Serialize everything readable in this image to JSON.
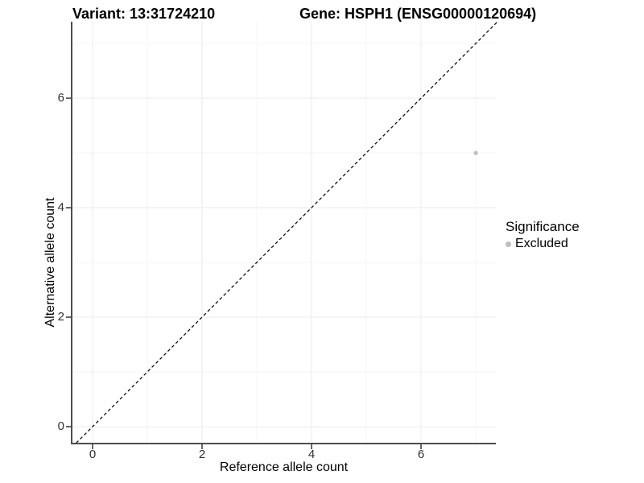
{
  "chart_data": {
    "type": "scatter",
    "titles": {
      "variant": "Variant: 13:31724210",
      "gene": "Gene: HSPH1 (ENSG00000120694)"
    },
    "xlabel": "Reference allele count",
    "ylabel": "Alternative allele count",
    "x_ticks": [
      0,
      2,
      4,
      6
    ],
    "y_ticks": [
      0,
      2,
      4,
      6
    ],
    "x_minor_gridlines": [
      1,
      3,
      5,
      7
    ],
    "y_minor_gridlines": [
      1,
      3,
      5,
      7
    ],
    "xlim": [
      -0.37,
      7.37
    ],
    "ylim": [
      -0.31,
      7.4
    ],
    "grid": true,
    "legend_position": "right",
    "points": [
      {
        "x": 7,
        "y": 5,
        "series": "Excluded"
      }
    ],
    "reference_line": {
      "kind": "identity",
      "style": "dashed",
      "x1": -0.3,
      "y1": -0.3,
      "x2": 7.4,
      "y2": 7.4
    },
    "legend": {
      "title": "Significance",
      "items": [
        {
          "label": "Excluded",
          "color": "#bebebe"
        }
      ]
    },
    "colors": {
      "point": "#bebebe",
      "grid_major": "#ebebeb",
      "grid_minor": "#f5f5f5",
      "axis_line": "#4d4d4d",
      "tick_mark": "#333333",
      "reference_line": "#000000"
    }
  }
}
